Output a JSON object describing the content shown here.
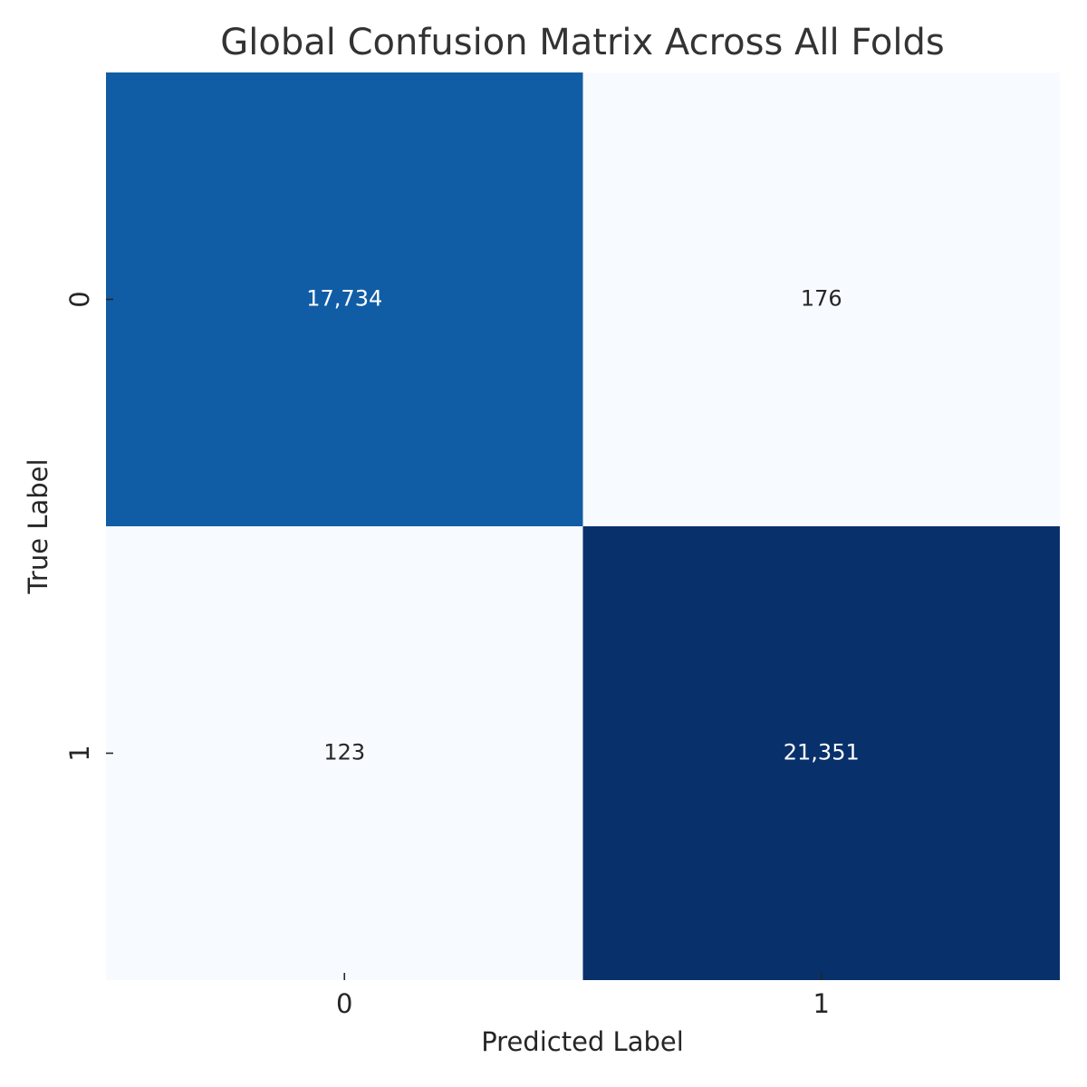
{
  "chart_data": {
    "type": "heatmap",
    "title": "Global Confusion Matrix Across All Folds",
    "xlabel": "Predicted Label",
    "ylabel": "True Label",
    "x_categories": [
      "0",
      "1"
    ],
    "y_categories": [
      "0",
      "1"
    ],
    "values": [
      [
        17734,
        176
      ],
      [
        123,
        21351
      ]
    ],
    "value_labels": [
      [
        "17,734",
        "176"
      ],
      [
        "123",
        "21,351"
      ]
    ],
    "colormap": "Blues"
  }
}
